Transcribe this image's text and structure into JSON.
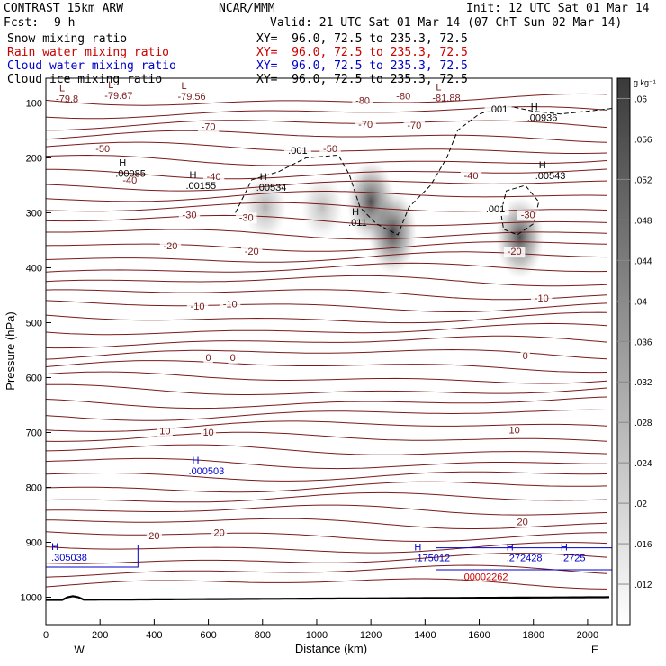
{
  "header": {
    "title": "CONTRAST 15km ARW",
    "fcst_label": "Fcst:",
    "fcst_value": "9 h",
    "center": "NCAR/MMM",
    "init": "Init: 12 UTC Sat 01 Mar 14",
    "valid": "Valid: 21 UTC Sat 01 Mar 14 (07 ChT Sun 02 Mar 14)"
  },
  "legend": [
    {
      "label": "Snow mixing ratio",
      "xy": "XY=  96.0, 72.5 to 235.3, 72.5",
      "color": "#000000"
    },
    {
      "label": "Rain water mixing ratio",
      "xy": "XY=  96.0, 72.5 to 235.3, 72.5",
      "color": "#cc0000"
    },
    {
      "label": "Cloud water mixing ratio",
      "xy": "XY=  96.0, 72.5 to 235.3, 72.5",
      "color": "#0000cc"
    },
    {
      "label": "Cloud ice mixing ratio",
      "xy": "XY=  96.0, 72.5 to 235.3, 72.5",
      "color": "#000000"
    }
  ],
  "chart_data": {
    "type": "contour",
    "xlabel": "Distance (km)",
    "ylabel": "Pressure (hPa)",
    "xlim": [
      0,
      2090
    ],
    "ylim": [
      1050,
      55
    ],
    "x_ticks": [
      0,
      200,
      400,
      600,
      800,
      1000,
      1200,
      1400,
      1600,
      1800,
      2000
    ],
    "y_ticks": [
      100,
      200,
      300,
      400,
      500,
      600,
      700,
      800,
      900,
      1000
    ],
    "endpoints": {
      "west": "W",
      "east": "E"
    },
    "colorbar": {
      "unit": "g kg⁻¹",
      "ticks": [
        ".06",
        ".056",
        ".052",
        ".048",
        ".044",
        ".04",
        ".036",
        ".032",
        ".028",
        ".024",
        ".02",
        ".016",
        ".012"
      ],
      "values": [
        0.06,
        0.056,
        0.052,
        0.048,
        0.044,
        0.04,
        0.036,
        0.032,
        0.028,
        0.024,
        0.02,
        0.016,
        0.012
      ]
    },
    "temperature_contours": [
      {
        "label": "-80",
        "x": 1170,
        "p": 95
      },
      {
        "label": "-80",
        "x": 1320,
        "p": 87
      },
      {
        "label": "-70",
        "x": 600,
        "p": 143
      },
      {
        "label": "-70",
        "x": 1180,
        "p": 139
      },
      {
        "label": "-70",
        "x": 1360,
        "p": 140
      },
      {
        "label": "-50",
        "x": 210,
        "p": 183
      },
      {
        "label": "-50",
        "x": 1050,
        "p": 183
      },
      {
        "label": "-40",
        "x": 310,
        "p": 240
      },
      {
        "label": "-40",
        "x": 620,
        "p": 234
      },
      {
        "label": "-40",
        "x": 1570,
        "p": 232
      },
      {
        "label": "-30",
        "x": 530,
        "p": 303
      },
      {
        "label": "-30",
        "x": 740,
        "p": 308
      },
      {
        "label": "-30",
        "x": 1780,
        "p": 303
      },
      {
        "label": "-20",
        "x": 460,
        "p": 360
      },
      {
        "label": "-20",
        "x": 760,
        "p": 370
      },
      {
        "label": "-20",
        "x": 1730,
        "p": 370
      },
      {
        "label": "-10",
        "x": 560,
        "p": 470
      },
      {
        "label": "-10",
        "x": 680,
        "p": 466
      },
      {
        "label": "-10",
        "x": 1830,
        "p": 455
      },
      {
        "label": "0",
        "x": 600,
        "p": 563
      },
      {
        "label": "0",
        "x": 690,
        "p": 563
      },
      {
        "label": "0",
        "x": 1770,
        "p": 560
      },
      {
        "label": "10",
        "x": 440,
        "p": 697
      },
      {
        "label": "10",
        "x": 600,
        "p": 699
      },
      {
        "label": "10",
        "x": 1730,
        "p": 695
      },
      {
        "label": "20",
        "x": 400,
        "p": 888
      },
      {
        "label": "20",
        "x": 640,
        "p": 882
      },
      {
        "label": "20",
        "x": 1760,
        "p": 862
      }
    ],
    "highs_lows": [
      {
        "kind": "L",
        "value": "-79.8",
        "x": 50,
        "p": 92
      },
      {
        "kind": "L",
        "value": "-79.67",
        "x": 230,
        "p": 86
      },
      {
        "kind": "L",
        "value": "-79.56",
        "x": 500,
        "p": 88
      },
      {
        "kind": "L",
        "value": "-81.88",
        "x": 1440,
        "p": 90
      },
      {
        "kind": "H",
        "value": ".00085",
        "x": 270,
        "p": 228
      },
      {
        "kind": "H",
        "value": ".00155",
        "x": 530,
        "p": 250
      },
      {
        "kind": "H",
        "value": ".00534",
        "x": 790,
        "p": 253
      },
      {
        "kind": "H",
        "value": ".011",
        "x": 1130,
        "p": 317
      },
      {
        "kind": "H",
        "value": ".00543",
        "x": 1820,
        "p": 232
      },
      {
        "kind": "H",
        "value": ".00936",
        "x": 1790,
        "p": 126
      },
      {
        "kind": "H",
        "value": ".000503",
        "x": 540,
        "p": 770
      }
    ],
    "ice_contour_labels": [
      {
        "label": ".001",
        "x": 1670,
        "p": 111
      },
      {
        "label": ".001",
        "x": 930,
        "p": 186
      },
      {
        "label": ".001",
        "x": 1660,
        "p": 293
      }
    ],
    "cloud_water_labels": [
      {
        "value": ".305038",
        "x": 120,
        "p": 927
      },
      {
        "value": ".175012",
        "x": 1460,
        "p": 928
      },
      {
        "value": ".272428",
        "x": 1800,
        "p": 928
      },
      {
        "value": ".2725",
        "x": 2000,
        "p": 928
      }
    ],
    "rain_water_labels": [
      {
        "value": ".00002262",
        "x": 1600,
        "p": 962
      }
    ],
    "snow_maxima": [
      {
        "x": 810,
        "p": 290,
        "intensity": 0.35
      },
      {
        "x": 1020,
        "p": 290,
        "intensity": 0.3
      },
      {
        "x": 1200,
        "p": 280,
        "intensity": 0.8
      },
      {
        "x": 1280,
        "p": 335,
        "intensity": 0.85
      },
      {
        "x": 1750,
        "p": 345,
        "intensity": 0.8
      }
    ]
  }
}
